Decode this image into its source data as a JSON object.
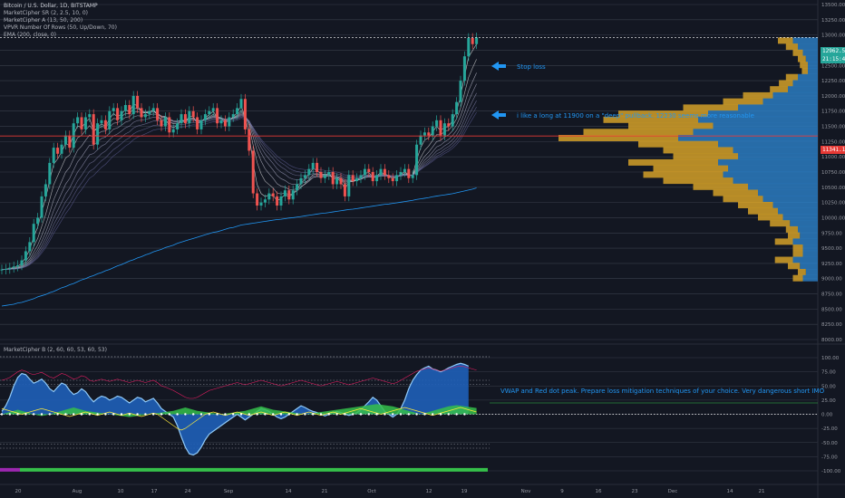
{
  "header": {
    "symbol_title": "Bitcoin / U.S. Dollar, 1D, BITSTAMP",
    "indicators": [
      "MarketCipher SR (2, 2.5, 10, 0)",
      "MarketCipher A (13, 50, 200)",
      "VPVR Number Of Rows (50, Up/Down, 70)",
      "EMA (200, close, 0)"
    ],
    "oscillator_title": "MarketCipher B (2, 60, 60, 53, 60, 53)"
  },
  "annotations": {
    "stop_loss": "Stop loss",
    "long_note": "i like a long at 11900 on a \"deep\" pullback. 12230 seems more reasonable",
    "vwap_note": "VWAP and Red dot peak. Prepare loss mitigation techniques of your choice. Very dangerous short IMO"
  },
  "price_tags": {
    "last_price": "12962.55",
    "countdown": "21:15:46",
    "red_line_price": "11341.18"
  },
  "colors": {
    "background": "#131722",
    "bull_candle": "#26a69a",
    "bear_candle": "#ef5350",
    "ema_line": "#2196f3",
    "vpvr_up": "#d4a028",
    "vpvr_down": "#2b7bc0",
    "annotation": "#2196f3",
    "wave_fill": "#1f5fb8",
    "money_flow": "#35c04a",
    "rsi_line": "#e91e63",
    "stoch_line": "#ffeb3b"
  },
  "chart_data": [
    {
      "type": "candlestick",
      "title": "Bitcoin / U.S. Dollar, 1D, BITSTAMP",
      "ylim": [
        8000,
        13500
      ],
      "y_ticks": [
        "13500.00",
        "13250.00",
        "13000.00",
        "12750.00",
        "12500.00",
        "12250.00",
        "12000.00",
        "11750.00",
        "11500.00",
        "11250.00",
        "11000.00",
        "10750.00",
        "10500.00",
        "10250.00",
        "10000.00",
        "9750.00",
        "9500.00",
        "9250.00",
        "9000.00",
        "8750.00",
        "8500.00",
        "8250.00",
        "8000.00"
      ],
      "x_ticks": [
        "20",
        "Aug",
        "10",
        "17",
        "24",
        "Sep",
        "14",
        "21",
        "Oct",
        "12",
        "19",
        "Nov",
        "9",
        "16",
        "23",
        "Dec",
        "14",
        "21"
      ],
      "close": [
        9150,
        9160,
        9180,
        9200,
        9220,
        9300,
        9450,
        9600,
        9900,
        10000,
        10350,
        10550,
        10900,
        11150,
        11050,
        11200,
        11350,
        11150,
        11550,
        11650,
        11450,
        11650,
        11700,
        11200,
        11550,
        11600,
        11450,
        11750,
        11800,
        11600,
        11750,
        11850,
        11700,
        12000,
        11800,
        11650,
        11700,
        11750,
        11800,
        11600,
        11500,
        11650,
        11400,
        11450,
        11550,
        11700,
        11550,
        11750,
        11650,
        11450,
        11600,
        11700,
        11750,
        11800,
        11550,
        11600,
        11500,
        11650,
        11700,
        11800,
        11950,
        11450,
        11100,
        10400,
        10200,
        10250,
        10300,
        10400,
        10350,
        10200,
        10350,
        10450,
        10300,
        10450,
        10550,
        10650,
        10700,
        10800,
        10900,
        10750,
        10650,
        10700,
        10750,
        10550,
        10650,
        10550,
        10350,
        10700,
        10600,
        10650,
        10700,
        10800,
        10750,
        10600,
        10700,
        10800,
        10700,
        10650,
        10600,
        10700,
        10750,
        10800,
        10650,
        10700,
        11200,
        11350,
        11400,
        11350,
        11500,
        11600,
        11350,
        11550,
        11500,
        11700,
        11900,
        12250,
        12650,
        12950,
        12850,
        12960
      ],
      "ema200": [
        8550,
        8560,
        8570,
        8580,
        8600,
        8610,
        8630,
        8650,
        8670,
        8700,
        8720,
        8740,
        8770,
        8790,
        8820,
        8850,
        8870,
        8900,
        8920,
        8950,
        8980,
        9000,
        9030,
        9050,
        9080,
        9100,
        9130,
        9150,
        9180,
        9210,
        9230,
        9260,
        9290,
        9310,
        9340,
        9360,
        9390,
        9410,
        9440,
        9460,
        9480,
        9510,
        9530,
        9550,
        9580,
        9600,
        9620,
        9640,
        9660,
        9680,
        9700,
        9720,
        9740,
        9760,
        9770,
        9790,
        9810,
        9830,
        9840,
        9860,
        9880,
        9890,
        9900,
        9910,
        9920,
        9930,
        9940,
        9950,
        9960,
        9970,
        9975,
        9985,
        9995,
        10000,
        10010,
        10020,
        10030,
        10040,
        10050,
        10060,
        10070,
        10075,
        10085,
        10095,
        10105,
        10115,
        10125,
        10135,
        10140,
        10150,
        10160,
        10170,
        10180,
        10190,
        10200,
        10210,
        10220,
        10225,
        10235,
        10245,
        10255,
        10265,
        10275,
        10285,
        10300,
        10310,
        10320,
        10330,
        10345,
        10355,
        10365,
        10375,
        10385,
        10395,
        10410,
        10425,
        10440,
        10455,
        10470,
        10490
      ],
      "red_line": 11341.18,
      "vpvr_price": [
        12900,
        12800,
        12700,
        12600,
        12500,
        12400,
        12300,
        12200,
        12100,
        12000,
        11900,
        11800,
        11700,
        11600,
        11500,
        11400,
        11300,
        11200,
        11100,
        11000,
        10900,
        10800,
        10700,
        10600,
        10500,
        10400,
        10300,
        10200,
        10100,
        10000,
        9900,
        9800,
        9700,
        9600,
        9500,
        9400,
        9300,
        9200,
        9100,
        9000
      ],
      "vpvr_up": [
        15,
        12,
        10,
        8,
        8,
        6,
        12,
        14,
        18,
        30,
        40,
        55,
        90,
        95,
        85,
        110,
        120,
        80,
        70,
        65,
        90,
        75,
        80,
        70,
        55,
        45,
        40,
        35,
        30,
        25,
        20,
        12,
        12,
        18,
        10,
        10,
        18,
        12,
        8,
        10
      ],
      "vpvr_down": [
        25,
        20,
        15,
        12,
        10,
        10,
        20,
        25,
        30,
        45,
        55,
        80,
        110,
        120,
        105,
        125,
        140,
        100,
        85,
        80,
        100,
        90,
        95,
        85,
        70,
        60,
        55,
        45,
        40,
        35,
        28,
        20,
        18,
        25,
        15,
        15,
        25,
        18,
        12,
        15
      ]
    },
    {
      "type": "oscillator",
      "title": "MarketCipher B (2, 60, 60, 53, 60, 53)",
      "ylim": [
        -100,
        100
      ],
      "y_ticks": [
        "100.00",
        "75.00",
        "50.00",
        "25.00",
        "0.00",
        "-25.00",
        "-50.00",
        "-75.00",
        "-100.00"
      ],
      "wave1": [
        5,
        15,
        30,
        50,
        65,
        72,
        70,
        62,
        55,
        58,
        62,
        55,
        45,
        40,
        48,
        55,
        52,
        42,
        35,
        38,
        45,
        40,
        30,
        22,
        28,
        32,
        30,
        25,
        28,
        32,
        30,
        25,
        20,
        25,
        30,
        28,
        22,
        25,
        28,
        20,
        10,
        5,
        0,
        -5,
        -20,
        -40,
        -58,
        -70,
        -72,
        -68,
        -58,
        -45,
        -35,
        -30,
        -25,
        -20,
        -15,
        -10,
        -5,
        0,
        -5,
        -10,
        -5,
        0,
        5,
        10,
        8,
        5,
        0,
        -5,
        -8,
        -5,
        0,
        5,
        10,
        15,
        12,
        8,
        5,
        3,
        0,
        -3,
        0,
        3,
        5,
        3,
        0,
        -2,
        0,
        3,
        8,
        15,
        22,
        30,
        25,
        15,
        5,
        0,
        -5,
        0,
        10,
        25,
        45,
        60,
        70,
        78,
        82,
        85,
        80,
        78,
        75,
        78,
        82,
        85,
        88,
        90,
        88,
        85
      ],
      "money_flow": [
        0,
        2,
        4,
        6,
        8,
        6,
        4,
        2,
        0,
        -2,
        -3,
        -2,
        0,
        2,
        4,
        6,
        8,
        10,
        12,
        10,
        8,
        6,
        5,
        4,
        3,
        2,
        1,
        0,
        -1,
        -2,
        -3,
        -4,
        -5,
        -4,
        -3,
        -2,
        -1,
        0,
        1,
        2,
        3,
        4,
        5,
        6,
        8,
        10,
        12,
        10,
        8,
        6,
        5,
        4,
        3,
        2,
        1,
        0,
        1,
        2,
        3,
        4,
        5,
        6,
        8,
        10,
        12,
        14,
        12,
        10,
        8,
        7,
        6,
        5,
        4,
        3,
        2,
        1,
        0,
        1,
        2,
        3,
        4,
        5,
        6,
        7,
        8,
        9,
        10,
        11,
        12,
        13,
        14,
        15,
        16,
        17,
        18,
        17,
        16,
        15,
        14,
        12,
        10,
        8,
        6,
        4,
        2,
        0,
        2,
        4,
        6,
        8,
        10,
        12,
        14,
        15,
        16,
        15,
        14,
        13,
        12,
        11
      ],
      "rsi": [
        60,
        62,
        65,
        70,
        75,
        78,
        76,
        72,
        70,
        72,
        74,
        70,
        66,
        64,
        68,
        72,
        70,
        66,
        62,
        64,
        68,
        66,
        60,
        58,
        60,
        62,
        60,
        58,
        60,
        62,
        60,
        58,
        56,
        58,
        60,
        58,
        56,
        58,
        60,
        56,
        50,
        48,
        45,
        42,
        38,
        34,
        30,
        28,
        28,
        30,
        34,
        38,
        42,
        44,
        46,
        48,
        50,
        52,
        54,
        56,
        54,
        52,
        54,
        56,
        58,
        60,
        58,
        56,
        54,
        52,
        50,
        52,
        54,
        56,
        58,
        60,
        58,
        56,
        54,
        52,
        50,
        52,
        54,
        56,
        58,
        56,
        54,
        52,
        54,
        56,
        58,
        60,
        62,
        64,
        62,
        60,
        58,
        56,
        54,
        56,
        60,
        64,
        68,
        72,
        76,
        78,
        80,
        82,
        80,
        78,
        76,
        78,
        80,
        82,
        84,
        85,
        84,
        82,
        80,
        78
      ],
      "stoch": [
        10,
        8,
        6,
        4,
        2,
        0,
        2,
        4,
        6,
        8,
        10,
        8,
        6,
        4,
        2,
        0,
        -2,
        -4,
        -2,
        0,
        2,
        4,
        2,
        0,
        -2,
        0,
        2,
        4,
        2,
        0,
        -2,
        0,
        2,
        0,
        -2,
        -4,
        -2,
        0,
        2,
        0,
        -5,
        -10,
        -15,
        -20,
        -25,
        -28,
        -25,
        -20,
        -15,
        -10,
        -5,
        0,
        2,
        4,
        2,
        0,
        -2,
        0,
        2,
        4,
        2,
        0,
        -2,
        0,
        2,
        4,
        2,
        0,
        -2,
        0,
        2,
        4,
        2,
        0,
        -2,
        0,
        2,
        4,
        2,
        0,
        -2,
        0,
        2,
        4,
        2,
        0,
        2,
        4,
        6,
        8,
        10,
        8,
        6,
        4,
        2,
        0,
        2,
        4,
        6,
        8,
        10,
        12,
        10,
        8,
        6,
        4,
        2,
        0,
        -2,
        0,
        2,
        4,
        6,
        8,
        10,
        12,
        10,
        8,
        6,
        4
      ]
    }
  ]
}
